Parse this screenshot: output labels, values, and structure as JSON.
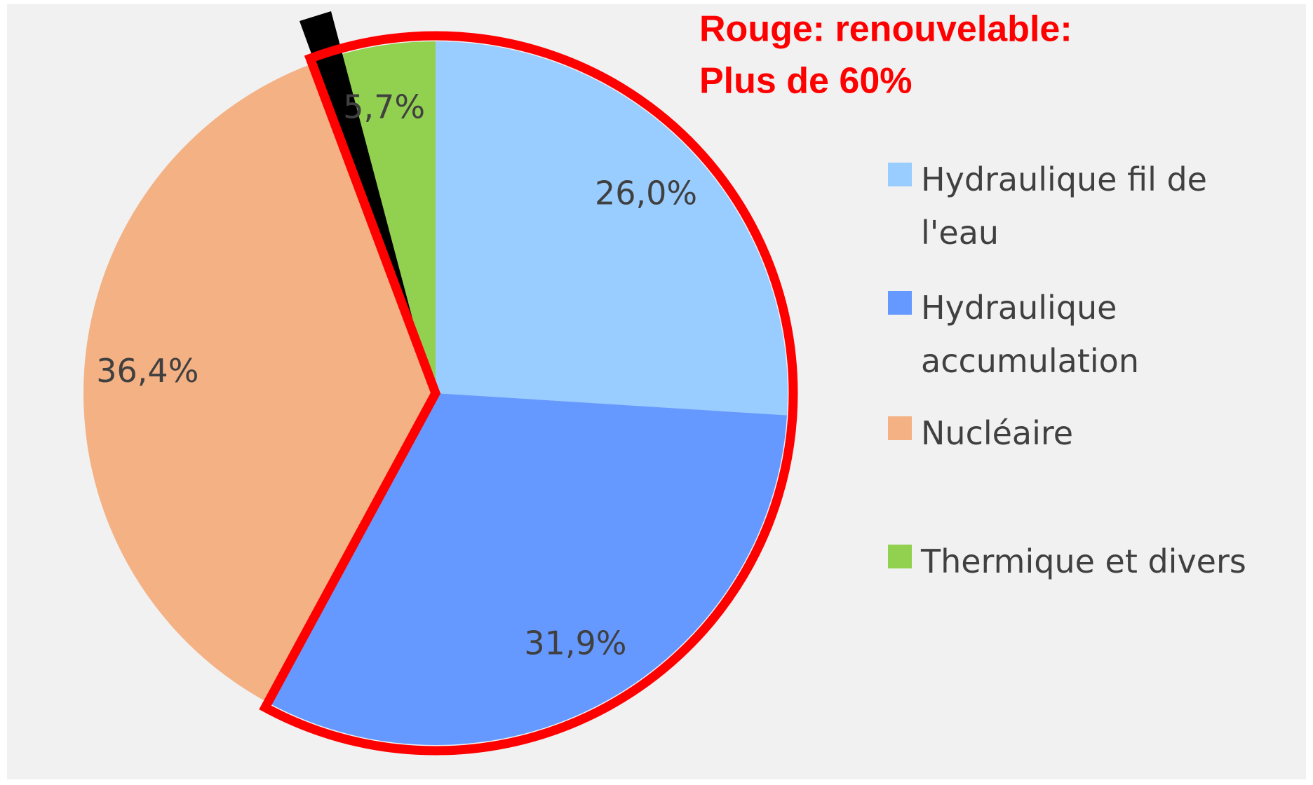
{
  "chart_data": {
    "type": "pie",
    "annotation": [
      "Rouge: renouvelable:",
      "Plus de 60%"
    ],
    "categories": [
      "Hydraulique fil de l'eau",
      "Hydraulique accumulation",
      "Nucléaire",
      "Thermique et divers"
    ],
    "values": [
      26.0,
      31.9,
      36.4,
      5.7
    ],
    "value_labels": [
      "26,0%",
      "31,9%",
      "36,4%",
      "5,7%"
    ],
    "colors": [
      "#99ccff",
      "#6699ff",
      "#f4b183",
      "#92d050"
    ]
  }
}
